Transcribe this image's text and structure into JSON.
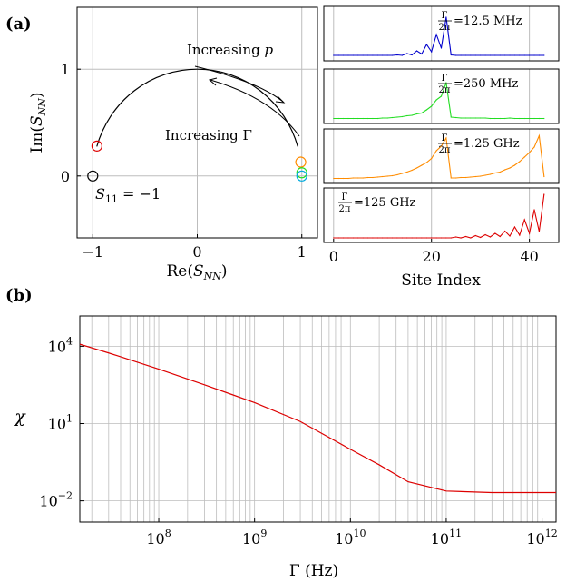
{
  "panel_labels": {
    "a": "(a)",
    "b": "(b)"
  },
  "colors": {
    "blue": "#0000cc",
    "green": "#22dd22",
    "orange": "#ff8c00",
    "red": "#dd0000",
    "cyan": "#00aadd",
    "grid": "#bdbdbd"
  },
  "chart_data": [
    {
      "id": "smith",
      "type": "scatter",
      "xlabel": "Re(S_NN)",
      "ylabel": "Im(S_NN)",
      "xlim": [
        -1.15,
        1.15
      ],
      "ylim": [
        -0.58,
        1.58
      ],
      "xticks": [
        -1,
        0,
        1
      ],
      "yticks": [
        0,
        1
      ],
      "grid": true,
      "arc": {
        "from_angle_deg": 16,
        "to_angle_deg": 164,
        "radius": 1
      },
      "markers": [
        {
          "name": "black",
          "x": -1.0,
          "y": 0.0,
          "color": "black"
        },
        {
          "name": "red",
          "x": -0.96,
          "y": 0.28,
          "color": "red"
        },
        {
          "name": "orange",
          "x": 0.99,
          "y": 0.13,
          "color": "orange"
        },
        {
          "name": "green",
          "x": 1.0,
          "y": 0.03,
          "color": "green"
        },
        {
          "name": "cyan",
          "x": 1.0,
          "y": 0.0,
          "color": "cyan"
        }
      ],
      "annotations": {
        "increasing_p": "Increasing p",
        "increasing_gamma": "Increasing Γ",
        "s11": "S11 = −1"
      }
    },
    {
      "id": "sites",
      "type": "line",
      "xlabel": "Site Index",
      "xlim": [
        -2,
        46
      ],
      "xticks": [
        0,
        20,
        40
      ],
      "grid": true,
      "series": [
        {
          "name": "Γ/2π = 12.5 MHz",
          "gamma_label": "=12.5 MHz",
          "color": "blue",
          "values": [
            0.02,
            0.02,
            0.02,
            0.02,
            0.02,
            0.02,
            0.02,
            0.02,
            0.02,
            0.02,
            0.02,
            0.02,
            0.02,
            0.03,
            0.02,
            0.06,
            0.03,
            0.12,
            0.05,
            0.26,
            0.1,
            0.48,
            0.18,
            0.86,
            0.03,
            0.02,
            0.02,
            0.02,
            0.02,
            0.02,
            0.02,
            0.02,
            0.02,
            0.02,
            0.02,
            0.02,
            0.02,
            0.02,
            0.02,
            0.02,
            0.02,
            0.02,
            0.02,
            0.02
          ]
        },
        {
          "name": "Γ/2π = 250 MHz",
          "gamma_label": "=250 MHz",
          "color": "green",
          "values": [
            0.01,
            0.01,
            0.01,
            0.01,
            0.01,
            0.01,
            0.01,
            0.01,
            0.01,
            0.01,
            0.02,
            0.02,
            0.03,
            0.04,
            0.05,
            0.07,
            0.08,
            0.11,
            0.13,
            0.2,
            0.28,
            0.42,
            0.5,
            0.8,
            0.04,
            0.03,
            0.02,
            0.02,
            0.02,
            0.02,
            0.02,
            0.02,
            0.01,
            0.01,
            0.01,
            0.01,
            0.02,
            0.01,
            0.01,
            0.01,
            0.01,
            0.01,
            0.01,
            0.01
          ]
        },
        {
          "name": "Γ/2π = 1.25 GHz",
          "gamma_label": "=1.25 GHz",
          "color": "orange",
          "values": [
            0.01,
            0.01,
            0.01,
            0.01,
            0.02,
            0.02,
            0.02,
            0.03,
            0.03,
            0.04,
            0.05,
            0.06,
            0.07,
            0.09,
            0.12,
            0.15,
            0.19,
            0.24,
            0.3,
            0.36,
            0.45,
            0.62,
            0.72,
            0.9,
            0.02,
            0.02,
            0.03,
            0.03,
            0.04,
            0.05,
            0.06,
            0.08,
            0.1,
            0.13,
            0.15,
            0.2,
            0.24,
            0.3,
            0.38,
            0.48,
            0.58,
            0.7,
            0.95,
            0.05
          ]
        },
        {
          "name": "Γ/2π = 125 GHz",
          "gamma_label": "=125 GHz",
          "color": "red",
          "values": [
            0.0,
            0.0,
            0.0,
            0.0,
            0.0,
            0.0,
            0.0,
            0.0,
            0.0,
            0.0,
            0.0,
            0.0,
            0.0,
            0.0,
            0.0,
            0.0,
            0.0,
            0.0,
            0.0,
            0.0,
            0.0,
            0.0,
            0.0,
            0.0,
            0.0,
            0.02,
            0.0,
            0.03,
            0.0,
            0.05,
            0.01,
            0.07,
            0.02,
            0.1,
            0.03,
            0.15,
            0.04,
            0.24,
            0.06,
            0.4,
            0.1,
            0.62,
            0.14,
            0.96
          ]
        }
      ]
    },
    {
      "id": "chi",
      "type": "line",
      "xlabel": "Γ (Hz)",
      "ylabel": "χ",
      "xscale": "log",
      "yscale": "log",
      "xlim": [
        15000000.0,
        1400000000000.0
      ],
      "ylim": [
        0.0015,
        150000
      ],
      "xticks": [
        "10^8",
        "10^9",
        "10^10",
        "10^11",
        "10^12"
      ],
      "yticks": [
        "10^4",
        "10^1",
        "10^-2"
      ],
      "grid": true,
      "series": [
        {
          "name": "χ",
          "color": "red",
          "x": [
            15000000.0,
            30000000.0,
            100000000.0,
            300000000.0,
            1000000000.0,
            3000000000.0,
            10000000000.0,
            20000000000.0,
            40000000000.0,
            100000000000.0,
            300000000000.0,
            1000000000000.0,
            1400000000000.0
          ],
          "y": [
            12000,
            5500,
            1300,
            320,
            65,
            12,
            1.0,
            0.25,
            0.055,
            0.024,
            0.021,
            0.021,
            0.021
          ]
        }
      ]
    }
  ]
}
